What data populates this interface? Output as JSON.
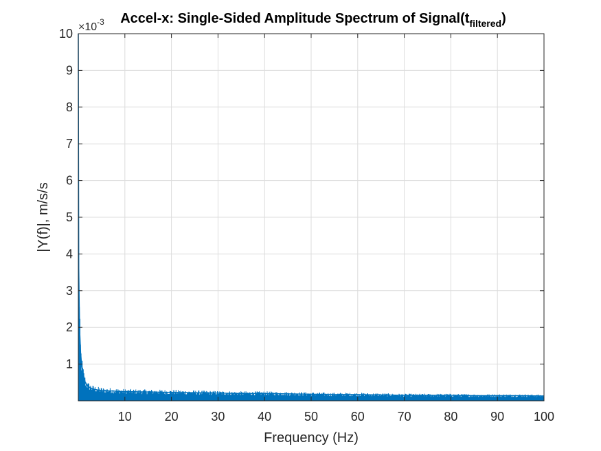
{
  "chart_data": {
    "type": "line",
    "title_main": "Accel-x: Single-Sided Amplitude Spectrum of Signal(t",
    "title_subscript": "filtered",
    "title_close": ")",
    "xlabel": "Frequency (Hz)",
    "ylabel": "|Y(f)|, m/s/s",
    "y_exponent_base": "×10",
    "y_exponent_power": "-3",
    "xlim": [
      0,
      100
    ],
    "ylim": [
      0,
      10
    ],
    "y_scale_factor": 0.001,
    "xticks": [
      10,
      20,
      30,
      40,
      50,
      60,
      70,
      80,
      90,
      100
    ],
    "yticks": [
      1,
      2,
      3,
      4,
      5,
      6,
      7,
      8,
      9,
      10
    ],
    "xtick_labels": [
      "10",
      "20",
      "30",
      "40",
      "50",
      "60",
      "70",
      "80",
      "90",
      "100"
    ],
    "ytick_labels": [
      "1",
      "2",
      "3",
      "4",
      "5",
      "6",
      "7",
      "8",
      "9",
      "10"
    ],
    "grid": true,
    "legend": "none",
    "series": [
      {
        "color": "#0072bd",
        "x": [
          0,
          0.05,
          0.1,
          0.2,
          0.3,
          0.5,
          0.7,
          1,
          1.5,
          2,
          3,
          4,
          5,
          7,
          10,
          15,
          20,
          25,
          30,
          35,
          40,
          45,
          50,
          55,
          60,
          65,
          70,
          75,
          80,
          85,
          90,
          95,
          100
        ],
        "y": [
          10,
          6.5,
          3.6,
          2.6,
          1.9,
          1.3,
          1.0,
          0.75,
          0.5,
          0.4,
          0.33,
          0.3,
          0.28,
          0.27,
          0.25,
          0.24,
          0.23,
          0.22,
          0.21,
          0.2,
          0.2,
          0.19,
          0.18,
          0.17,
          0.17,
          0.16,
          0.15,
          0.15,
          0.15,
          0.14,
          0.14,
          0.14,
          0.13
        ]
      }
    ]
  }
}
